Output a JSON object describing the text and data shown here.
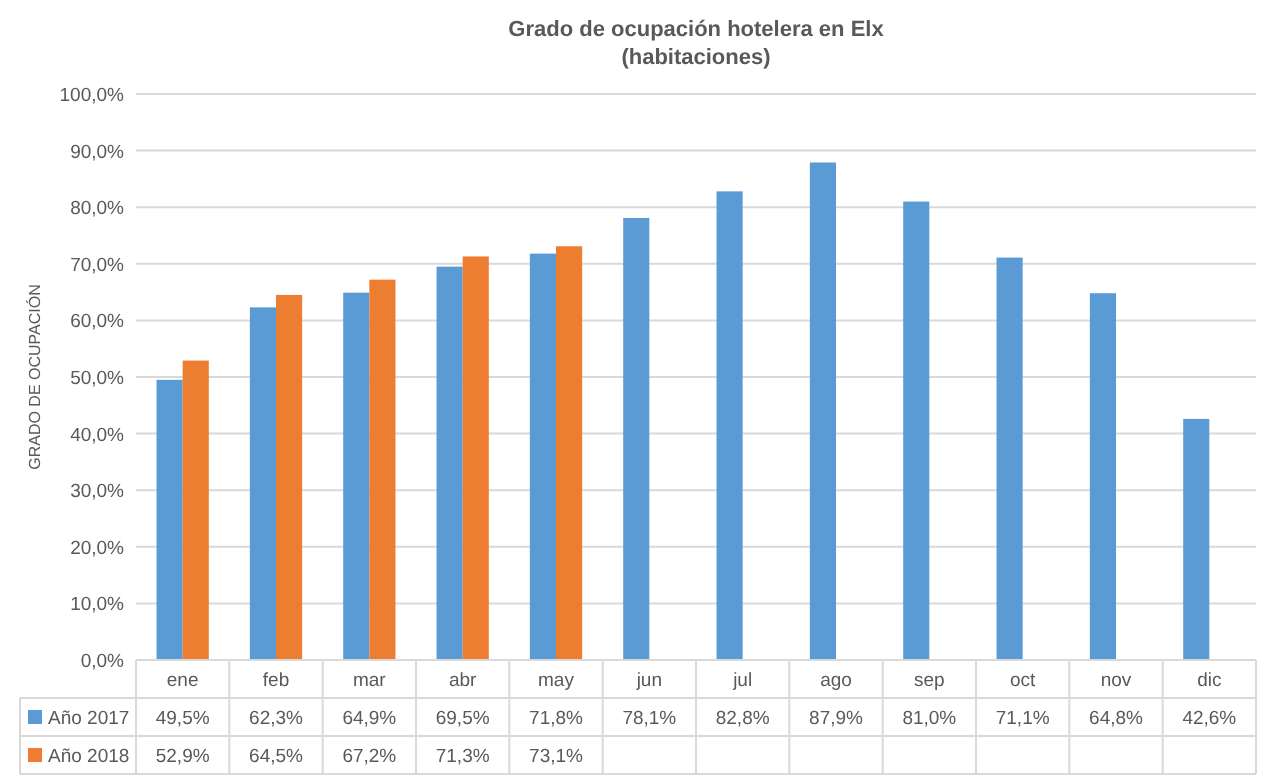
{
  "chart_data": {
    "type": "bar",
    "title": "Grado de ocupación hotelera en Elx",
    "subtitle": "(habitaciones)",
    "ylabel": "GRADO DE OCUPACIÓN",
    "categories": [
      "ene",
      "feb",
      "mar",
      "abr",
      "may",
      "jun",
      "jul",
      "ago",
      "sep",
      "oct",
      "nov",
      "dic"
    ],
    "series": [
      {
        "name": "Año 2017",
        "color": "#5b9bd5",
        "values": [
          49.5,
          62.3,
          64.9,
          69.5,
          71.8,
          78.1,
          82.8,
          87.9,
          81.0,
          71.1,
          64.8,
          42.6
        ],
        "value_labels": [
          "49,5%",
          "62,3%",
          "64,9%",
          "69,5%",
          "71,8%",
          "78,1%",
          "82,8%",
          "87,9%",
          "81,0%",
          "71,1%",
          "64,8%",
          "42,6%"
        ]
      },
      {
        "name": "Año 2018",
        "color": "#ed7d31",
        "values": [
          52.9,
          64.5,
          67.2,
          71.3,
          73.1,
          null,
          null,
          null,
          null,
          null,
          null,
          null
        ],
        "value_labels": [
          "52,9%",
          "64,5%",
          "67,2%",
          "71,3%",
          "73,1%",
          null,
          null,
          null,
          null,
          null,
          null,
          null
        ]
      }
    ],
    "ylim": [
      0,
      100
    ],
    "yticks": [
      {
        "value": 0,
        "label": "0,0%"
      },
      {
        "value": 10,
        "label": "10,0%"
      },
      {
        "value": 20,
        "label": "20,0%"
      },
      {
        "value": 30,
        "label": "30,0%"
      },
      {
        "value": 40,
        "label": "40,0%"
      },
      {
        "value": 50,
        "label": "50,0%"
      },
      {
        "value": 60,
        "label": "60,0%"
      },
      {
        "value": 70,
        "label": "70,0%"
      },
      {
        "value": 80,
        "label": "80,0%"
      },
      {
        "value": 90,
        "label": "90,0%"
      },
      {
        "value": 100,
        "label": "100,0%"
      }
    ],
    "grid": "y",
    "legend": "bottom"
  }
}
